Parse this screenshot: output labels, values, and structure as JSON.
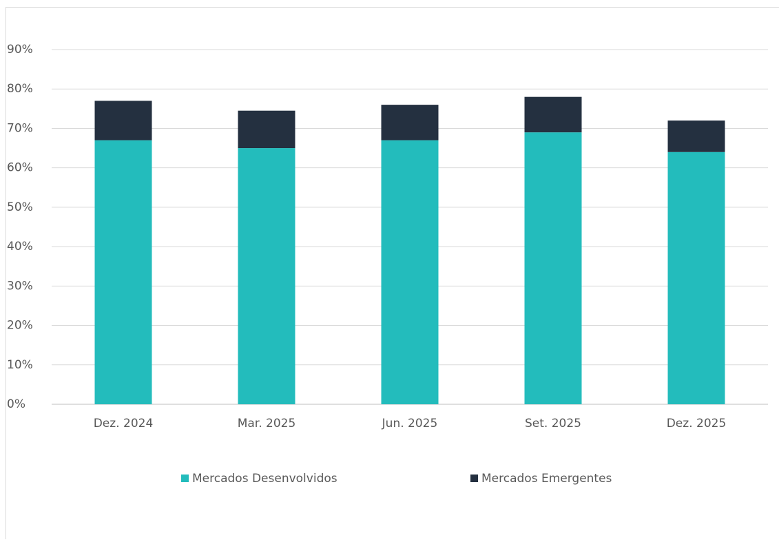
{
  "chart_data": {
    "type": "stacked_bar",
    "categories": [
      "Dez. 2024",
      "Mar. 2025",
      "Jun. 2025",
      "Set. 2025",
      "Dez. 2025"
    ],
    "series": [
      {
        "name": "Mercados Desenvolvidos",
        "color": "#23bcbc",
        "values": [
          67,
          65,
          67,
          69,
          64
        ]
      },
      {
        "name": "Mercados Emergentes",
        "color": "#243040",
        "values": [
          10,
          9.5,
          9,
          9,
          8
        ]
      }
    ],
    "ylim": [
      0,
      90
    ],
    "yticks": [
      {
        "value": 0,
        "label": "0%"
      },
      {
        "value": 10,
        "label": "10%"
      },
      {
        "value": 20,
        "label": "20%"
      },
      {
        "value": 30,
        "label": "30%"
      },
      {
        "value": 40,
        "label": "40%"
      },
      {
        "value": 50,
        "label": "50%"
      },
      {
        "value": 60,
        "label": "60%"
      },
      {
        "value": 70,
        "label": "70%"
      },
      {
        "value": 80,
        "label": "80%"
      },
      {
        "value": 90,
        "label": "90%"
      }
    ],
    "grid": true,
    "legend": "bottom"
  }
}
